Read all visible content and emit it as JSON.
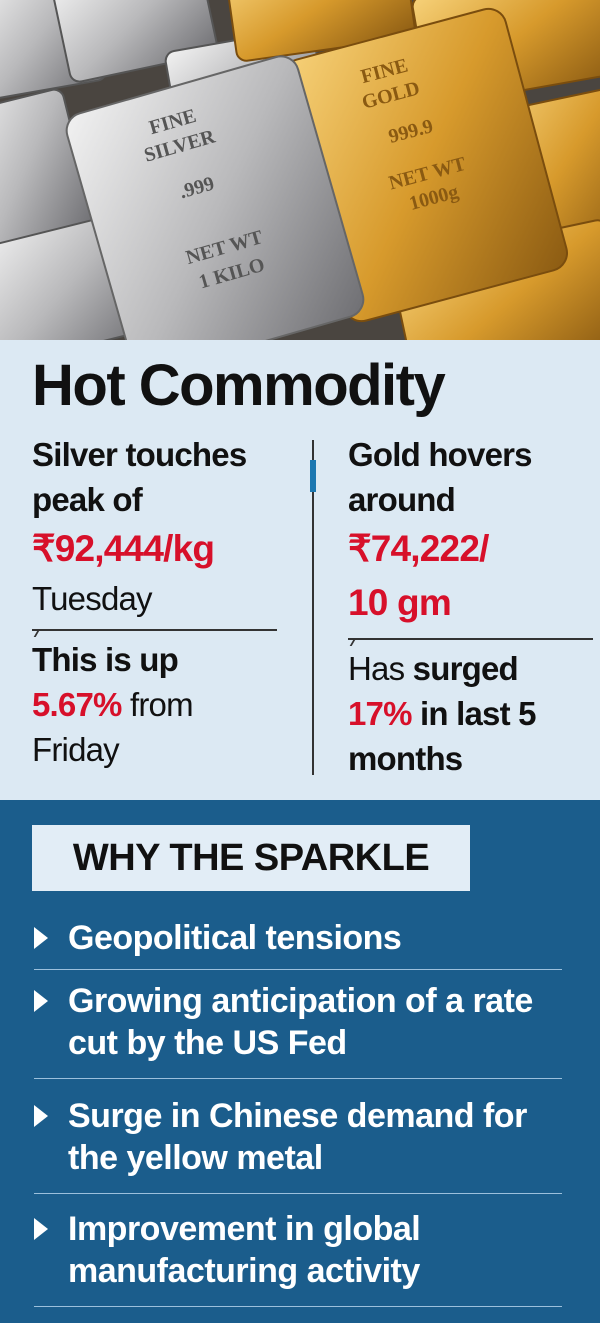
{
  "image_text": {
    "silver_bar": [
      "FINE",
      "SILVER",
      ".999",
      "NET WT",
      "1 KILO"
    ],
    "gold_bar": [
      "FINE",
      "GOLD",
      "999.9",
      "NET WT",
      "1000g"
    ]
  },
  "title": "Hot Commodity",
  "silver": {
    "intro": "Silver touches peak of",
    "price": "₹92,444/kg",
    "day": "Tuesday",
    "change_intro": "This is up",
    "change": "5.67%",
    "change_rest": "from",
    "change_day": "Friday"
  },
  "gold": {
    "intro": "Gold hovers around",
    "price_lines": [
      "₹74,222/",
      "10 gm"
    ],
    "change_intro": "Has",
    "change_verb": "surged",
    "change": "17%",
    "change_rest": "in last 5 months"
  },
  "why": {
    "heading": "WHY THE SPARKLE",
    "items": [
      "Geopolitical tensions",
      "Growing anticipation of a rate cut by the US Fed",
      "Surge in Chinese demand for the yellow metal",
      "Improvement in global manufacturing activity"
    ]
  }
}
